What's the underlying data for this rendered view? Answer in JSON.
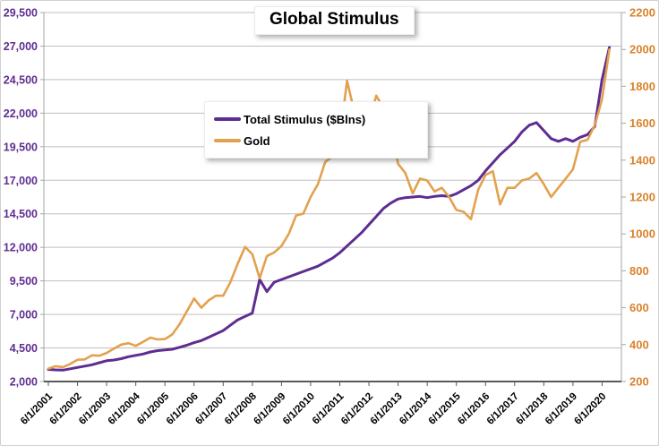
{
  "chart_data": {
    "type": "line",
    "title": "Global Stimulus",
    "grid": true,
    "legend_position": "upper-left-inside",
    "x": [
      2001.5,
      2001.75,
      2002,
      2002.25,
      2002.5,
      2002.75,
      2003,
      2003.25,
      2003.5,
      2003.75,
      2004,
      2004.25,
      2004.5,
      2004.75,
      2005,
      2005.25,
      2005.5,
      2005.75,
      2006,
      2006.25,
      2006.5,
      2006.75,
      2007,
      2007.25,
      2007.5,
      2007.75,
      2008,
      2008.25,
      2008.5,
      2008.75,
      2009,
      2009.25,
      2009.5,
      2009.75,
      2010,
      2010.25,
      2010.5,
      2010.75,
      2011,
      2011.25,
      2011.5,
      2011.75,
      2012,
      2012.25,
      2012.5,
      2012.75,
      2013,
      2013.25,
      2013.5,
      2013.75,
      2014,
      2014.25,
      2014.5,
      2014.75,
      2015,
      2015.25,
      2015.5,
      2015.75,
      2016,
      2016.25,
      2016.5,
      2016.75,
      2017,
      2017.25,
      2017.5,
      2017.75,
      2018,
      2018.25,
      2018.5,
      2018.75,
      2019,
      2019.25,
      2019.5,
      2019.75,
      2020,
      2020.25,
      2020.5,
      2020.75
    ],
    "series": [
      {
        "name": "Total Stimulus ($Blns)",
        "axis": "left",
        "color": "#5E2D91",
        "line_width": 3,
        "values": [
          2900,
          2870,
          2850,
          2950,
          3050,
          3150,
          3250,
          3400,
          3550,
          3600,
          3700,
          3850,
          3950,
          4050,
          4200,
          4300,
          4350,
          4400,
          4550,
          4700,
          4900,
          5050,
          5300,
          5550,
          5800,
          6200,
          6600,
          6850,
          7100,
          9600,
          8700,
          9400,
          9600,
          9800,
          10000,
          10200,
          10400,
          10600,
          10900,
          11200,
          11600,
          12100,
          12600,
          13100,
          13700,
          14300,
          14900,
          15300,
          15600,
          15700,
          15750,
          15800,
          15700,
          15800,
          15850,
          15800,
          16000,
          16300,
          16600,
          17000,
          17700,
          18300,
          18900,
          19400,
          19900,
          20600,
          21100,
          21300,
          20700,
          20100,
          19900,
          20100,
          19900,
          20200,
          20400,
          21000,
          24500,
          26900
        ]
      },
      {
        "name": "Gold",
        "axis": "right",
        "color": "#E3A14F",
        "line_width": 2.6,
        "values": [
          270,
          283,
          278,
          295,
          318,
          320,
          342,
          340,
          355,
          378,
          400,
          408,
          393,
          415,
          438,
          428,
          430,
          455,
          510,
          580,
          650,
          600,
          640,
          665,
          665,
          740,
          840,
          930,
          890,
          760,
          880,
          900,
          935,
          1000,
          1100,
          1110,
          1200,
          1270,
          1390,
          1420,
          1520,
          1830,
          1660,
          1700,
          1600,
          1750,
          1680,
          1600,
          1380,
          1330,
          1220,
          1300,
          1290,
          1230,
          1250,
          1200,
          1130,
          1120,
          1080,
          1240,
          1320,
          1340,
          1160,
          1250,
          1250,
          1290,
          1300,
          1330,
          1270,
          1200,
          1250,
          1300,
          1350,
          1500,
          1510,
          1590,
          1730,
          2000
        ]
      }
    ],
    "left_axis": {
      "color": "#5E2D91",
      "min": 2000,
      "max": 29500,
      "step": 2500,
      "tick_values": [
        2000,
        4500,
        7000,
        9500,
        12000,
        14500,
        17000,
        19500,
        22000,
        24500,
        27000,
        29500
      ],
      "tick_labels": [
        "2,000",
        "4,500",
        "7,000",
        "9,500",
        "12,000",
        "14,500",
        "17,000",
        "19,500",
        "22,000",
        "24,500",
        "27,000",
        "29,500"
      ]
    },
    "right_axis": {
      "color": "#D9822B",
      "min": 200,
      "max": 2200,
      "step": 200,
      "tick_values": [
        200,
        400,
        600,
        800,
        1000,
        1200,
        1400,
        1600,
        1800,
        2000,
        2200
      ],
      "tick_labels": [
        "200",
        "400",
        "600",
        "800",
        "1000",
        "1200",
        "1400",
        "1600",
        "1800",
        "2000",
        "2200"
      ]
    },
    "x_axis": {
      "color": "#000000",
      "tick_years": [
        2001,
        2002,
        2003,
        2004,
        2005,
        2006,
        2007,
        2008,
        2009,
        2010,
        2011,
        2012,
        2013,
        2014,
        2015,
        2016,
        2017,
        2018,
        2019,
        2020
      ],
      "tick_labels": [
        "6/1/2001",
        "6/1/2002",
        "6/1/2003",
        "6/1/2004",
        "6/1/2005",
        "6/1/2006",
        "6/1/2007",
        "6/1/2008",
        "6/1/2009",
        "6/1/2010",
        "6/1/2011",
        "6/1/2012",
        "6/1/2013",
        "6/1/2014",
        "6/1/2015",
        "6/1/2016",
        "6/1/2017",
        "6/1/2018",
        "6/1/2019",
        "6/1/2020"
      ]
    },
    "style": {
      "gridline_color": "#BFBFBF",
      "axis_line_color": "#A6A6A6",
      "bottom_axis_color": "#595959"
    }
  }
}
